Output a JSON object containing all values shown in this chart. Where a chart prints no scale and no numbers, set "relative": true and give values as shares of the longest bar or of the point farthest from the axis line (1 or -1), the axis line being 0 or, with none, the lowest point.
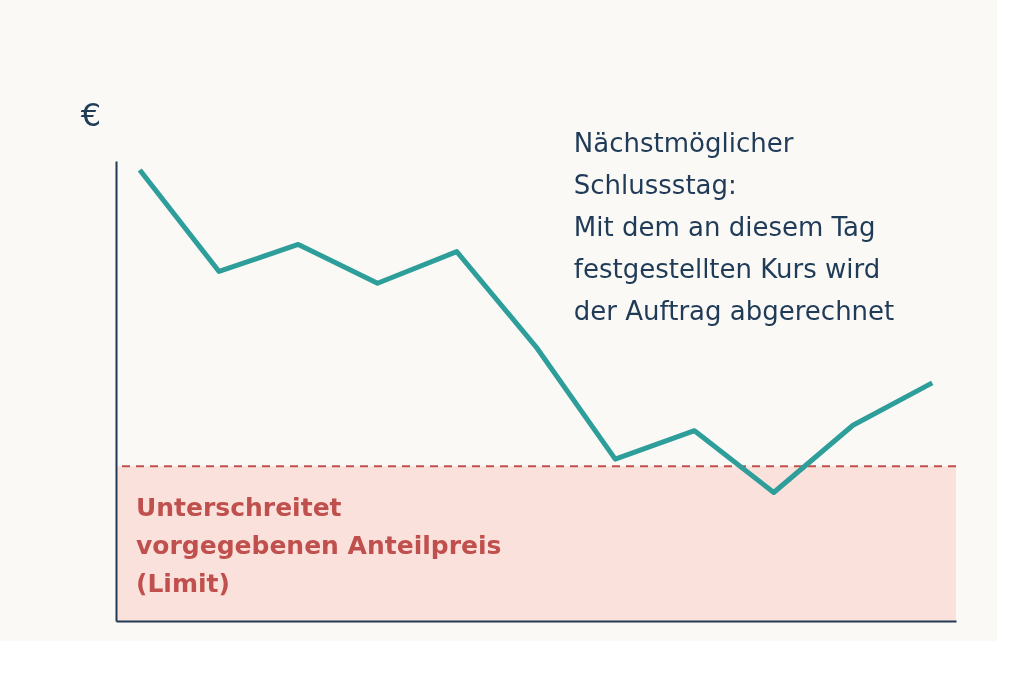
{
  "chart_data": {
    "type": "line",
    "relative": true,
    "ylabel": "€",
    "categories": [
      null,
      null,
      null,
      null,
      null,
      null,
      null,
      null,
      null,
      null,
      null
    ],
    "series": [
      {
        "color": "#2e9e9b",
        "values": [
          1.0,
          0.775,
          0.835,
          0.749,
          0.819,
          0.608,
          0.359,
          0.422,
          0.285,
          0.434,
          0.528
        ]
      }
    ],
    "ref_lines": [
      {
        "axis": "y",
        "value": 0.343,
        "color": "#c0504d",
        "line_style": "dashed"
      }
    ],
    "bands": [
      {
        "axis": "y",
        "from": 0,
        "to": 0.343,
        "color": "#fbe1dc",
        "label": "Unterschreitet\nvorgegebenen  Anteilpreis\n(Limit)"
      }
    ],
    "annotations": [
      "Nächstmöglicher\nSchlussstag:\nMit dem an diesem Tag\nfestgestellten Kurs wird\nder Auftrag abgerechnet"
    ],
    "grid": false,
    "legend": false,
    "tick_labels": false,
    "marker": "none",
    "line_style": "solid"
  }
}
